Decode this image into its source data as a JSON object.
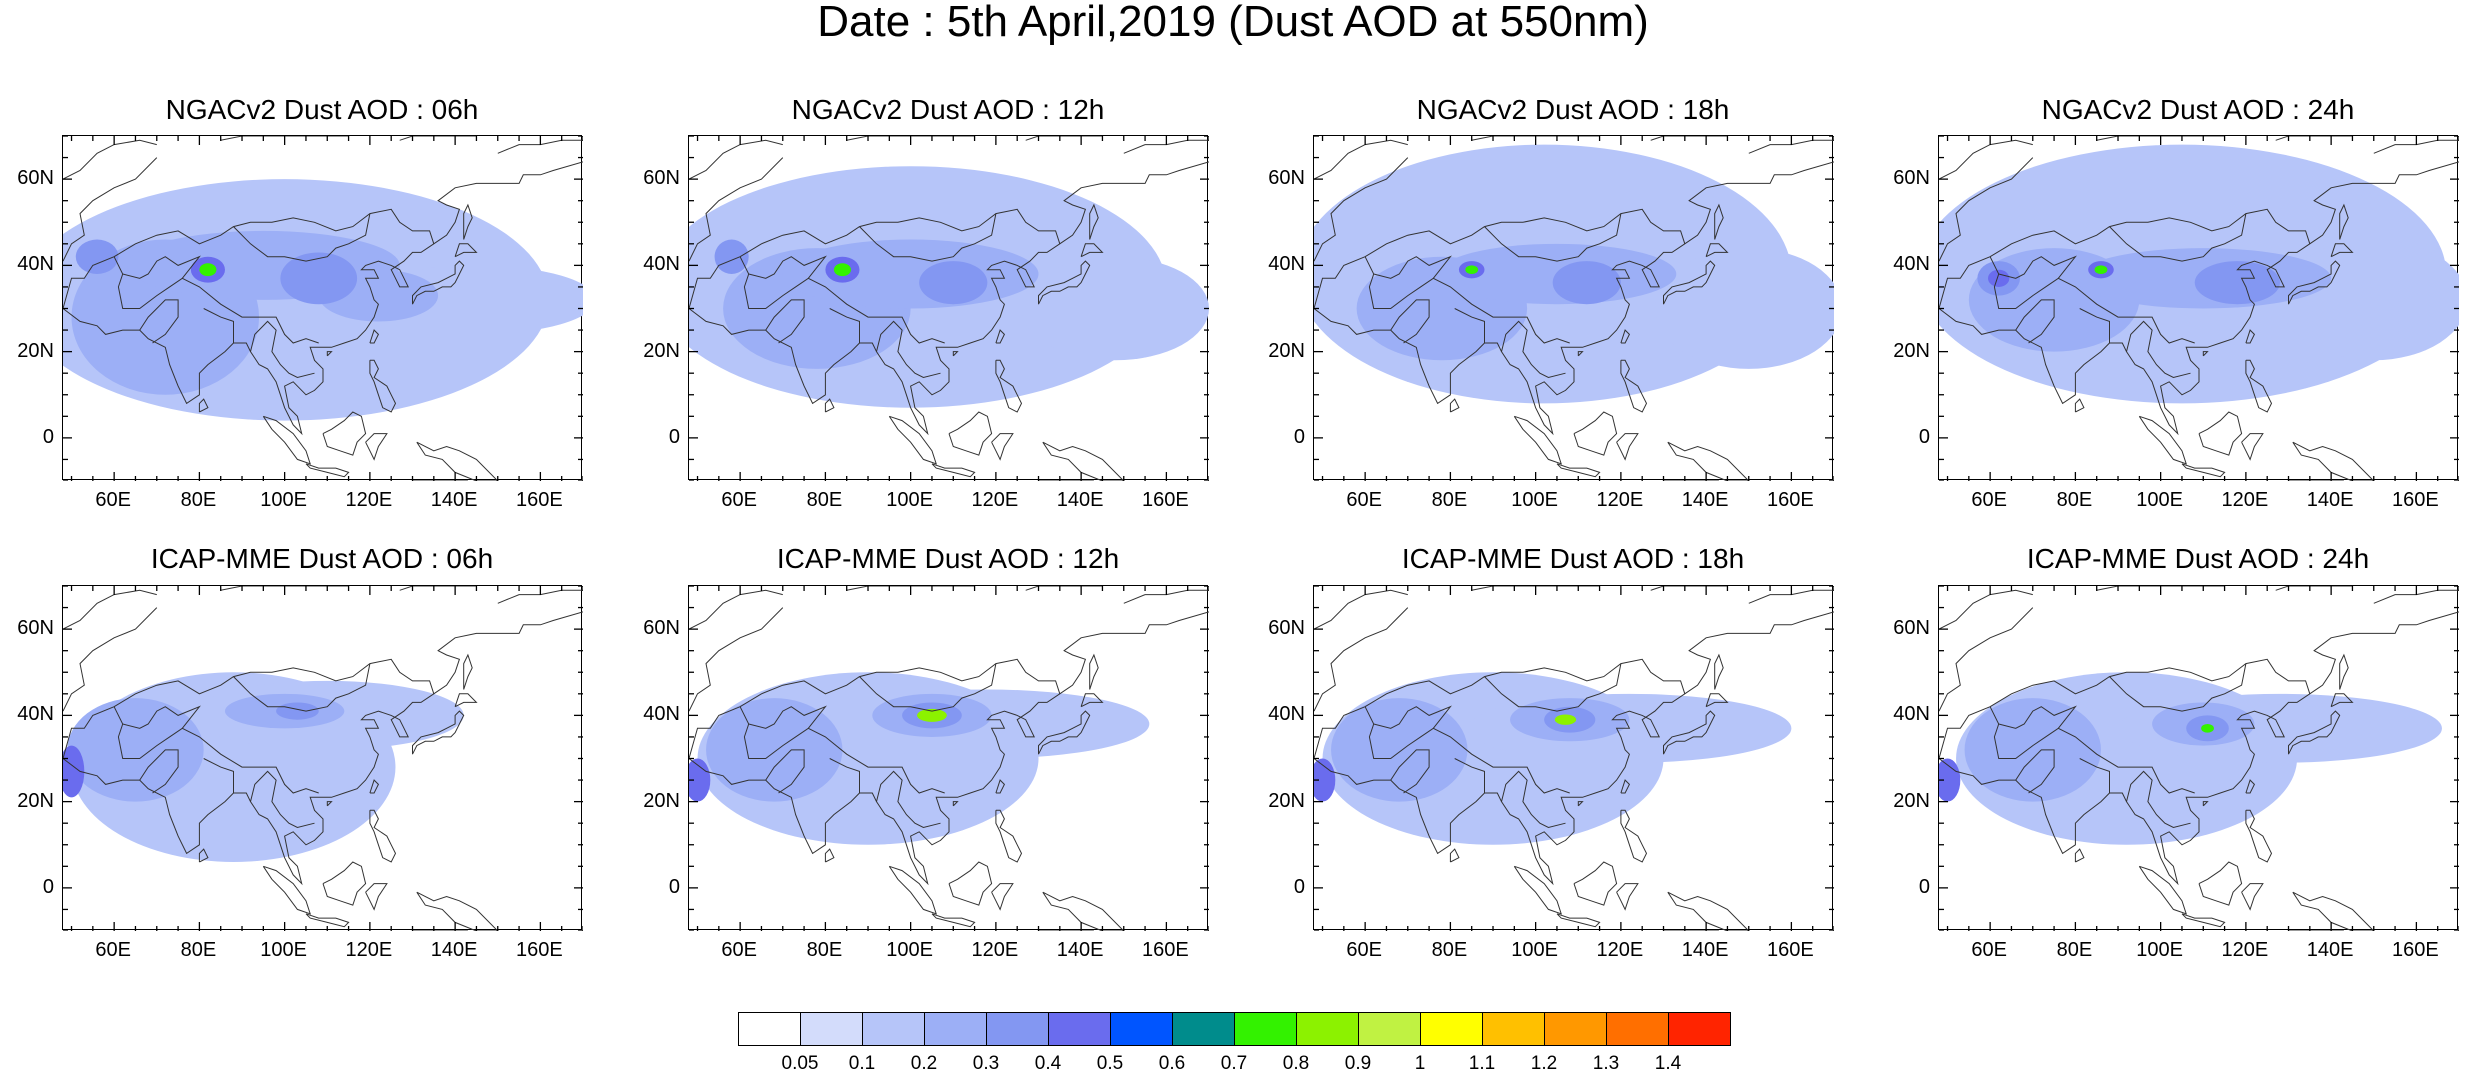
{
  "figure": {
    "title": "Date : 5th April,2019 (Dust AOD at 550nm)"
  },
  "axes": {
    "x_ticks": [
      "60E",
      "80E",
      "100E",
      "120E",
      "140E",
      "160E"
    ],
    "x_tick_values": [
      60,
      80,
      100,
      120,
      140,
      160
    ],
    "y_ticks": [
      "60N",
      "40N",
      "20N",
      "0"
    ],
    "y_tick_values": [
      60,
      40,
      20,
      0
    ],
    "lon_range": [
      48,
      170
    ],
    "lat_range": [
      -10,
      70
    ]
  },
  "panels": [
    {
      "title": "NGACv2 Dust AOD : 06h",
      "model": "NGACv2",
      "forecast_hour": "06h",
      "features": [
        {
          "level": 0.1,
          "shape": "ellipse",
          "lon": 100,
          "lat": 32,
          "rlon": 62,
          "rlat": 28
        },
        {
          "level": 0.1,
          "shape": "ellipse",
          "lon": 145,
          "lat": 32,
          "rlon": 28,
          "rlat": 8
        },
        {
          "level": 0.2,
          "shape": "ellipse",
          "lon": 72,
          "lat": 28,
          "rlon": 22,
          "rlat": 18
        },
        {
          "level": 0.2,
          "shape": "ellipse",
          "lon": 95,
          "lat": 40,
          "rlon": 32,
          "rlat": 8
        },
        {
          "level": 0.2,
          "shape": "ellipse",
          "lon": 122,
          "lat": 33,
          "rlon": 14,
          "rlat": 6
        },
        {
          "level": 0.3,
          "shape": "ellipse",
          "lon": 108,
          "lat": 37,
          "rlon": 9,
          "rlat": 6
        },
        {
          "level": 0.3,
          "shape": "ellipse",
          "lon": 56,
          "lat": 42,
          "rlon": 5,
          "rlat": 4
        },
        {
          "level": 0.4,
          "shape": "ellipse",
          "lon": 82,
          "lat": 39,
          "rlon": 4,
          "rlat": 3
        },
        {
          "level": 0.7,
          "shape": "ellipse",
          "lon": 82,
          "lat": 39,
          "rlon": 2,
          "rlat": 1.5
        }
      ]
    },
    {
      "title": "NGACv2 Dust AOD : 12h",
      "model": "NGACv2",
      "forecast_hour": "12h",
      "features": [
        {
          "level": 0.1,
          "shape": "ellipse",
          "lon": 100,
          "lat": 35,
          "rlon": 60,
          "rlat": 28
        },
        {
          "level": 0.1,
          "shape": "ellipse",
          "lon": 148,
          "lat": 30,
          "rlon": 22,
          "rlat": 12
        },
        {
          "level": 0.2,
          "shape": "ellipse",
          "lon": 78,
          "lat": 30,
          "rlon": 22,
          "rlat": 14
        },
        {
          "level": 0.2,
          "shape": "ellipse",
          "lon": 100,
          "lat": 38,
          "rlon": 30,
          "rlat": 8
        },
        {
          "level": 0.3,
          "shape": "ellipse",
          "lon": 110,
          "lat": 36,
          "rlon": 8,
          "rlat": 5
        },
        {
          "level": 0.3,
          "shape": "ellipse",
          "lon": 58,
          "lat": 42,
          "rlon": 4,
          "rlat": 4
        },
        {
          "level": 0.4,
          "shape": "ellipse",
          "lon": 84,
          "lat": 39,
          "rlon": 4,
          "rlat": 3
        },
        {
          "level": 0.7,
          "shape": "ellipse",
          "lon": 84,
          "lat": 39,
          "rlon": 2,
          "rlat": 1.5
        }
      ]
    },
    {
      "title": "NGACv2 Dust AOD : 18h",
      "model": "NGACv2",
      "forecast_hour": "18h",
      "features": [
        {
          "level": 0.1,
          "shape": "ellipse",
          "lon": 102,
          "lat": 38,
          "rlon": 58,
          "rlat": 30
        },
        {
          "level": 0.1,
          "shape": "ellipse",
          "lon": 150,
          "lat": 30,
          "rlon": 22,
          "rlat": 14
        },
        {
          "level": 0.2,
          "shape": "ellipse",
          "lon": 78,
          "lat": 30,
          "rlon": 20,
          "rlat": 12
        },
        {
          "level": 0.2,
          "shape": "ellipse",
          "lon": 105,
          "lat": 38,
          "rlon": 28,
          "rlat": 7
        },
        {
          "level": 0.3,
          "shape": "ellipse",
          "lon": 112,
          "lat": 36,
          "rlon": 8,
          "rlat": 5
        },
        {
          "level": 0.4,
          "shape": "ellipse",
          "lon": 85,
          "lat": 39,
          "rlon": 3,
          "rlat": 2
        },
        {
          "level": 0.7,
          "shape": "ellipse",
          "lon": 85,
          "lat": 39,
          "rlon": 1.5,
          "rlat": 1
        }
      ]
    },
    {
      "title": "NGACv2 Dust AOD : 24h",
      "model": "NGACv2",
      "forecast_hour": "24h",
      "features": [
        {
          "level": 0.1,
          "shape": "ellipse",
          "lon": 105,
          "lat": 38,
          "rlon": 62,
          "rlat": 30
        },
        {
          "level": 0.1,
          "shape": "ellipse",
          "lon": 150,
          "lat": 32,
          "rlon": 22,
          "rlat": 14
        },
        {
          "level": 0.2,
          "shape": "ellipse",
          "lon": 75,
          "lat": 32,
          "rlon": 20,
          "rlat": 12
        },
        {
          "level": 0.2,
          "shape": "ellipse",
          "lon": 110,
          "lat": 37,
          "rlon": 30,
          "rlat": 7
        },
        {
          "level": 0.3,
          "shape": "ellipse",
          "lon": 118,
          "lat": 36,
          "rlon": 10,
          "rlat": 5
        },
        {
          "level": 0.3,
          "shape": "ellipse",
          "lon": 62,
          "lat": 37,
          "rlon": 5,
          "rlat": 4
        },
        {
          "level": 0.4,
          "shape": "ellipse",
          "lon": 62,
          "lat": 37,
          "rlon": 2.5,
          "rlat": 2
        },
        {
          "level": 0.4,
          "shape": "ellipse",
          "lon": 86,
          "lat": 39,
          "rlon": 3,
          "rlat": 2
        },
        {
          "level": 0.7,
          "shape": "ellipse",
          "lon": 86,
          "lat": 39,
          "rlon": 1.5,
          "rlat": 1
        }
      ]
    },
    {
      "title": "ICAP-MME Dust AOD : 06h",
      "model": "ICAP-MME",
      "forecast_hour": "06h",
      "features": [
        {
          "level": 0.1,
          "shape": "ellipse",
          "lon": 88,
          "lat": 28,
          "rlon": 38,
          "rlat": 22
        },
        {
          "level": 0.1,
          "shape": "ellipse",
          "lon": 110,
          "lat": 40,
          "rlon": 32,
          "rlat": 8
        },
        {
          "level": 0.2,
          "shape": "ellipse",
          "lon": 65,
          "lat": 32,
          "rlon": 16,
          "rlat": 12
        },
        {
          "level": 0.2,
          "shape": "ellipse",
          "lon": 100,
          "lat": 41,
          "rlon": 14,
          "rlat": 4
        },
        {
          "level": 0.3,
          "shape": "ellipse",
          "lon": 103,
          "lat": 41,
          "rlon": 5,
          "rlat": 2
        },
        {
          "level": 0.4,
          "shape": "ellipse",
          "lon": 50,
          "lat": 27,
          "rlon": 3,
          "rlat": 6
        }
      ]
    },
    {
      "title": "ICAP-MME Dust AOD : 12h",
      "model": "ICAP-MME",
      "forecast_hour": "12h",
      "features": [
        {
          "level": 0.1,
          "shape": "ellipse",
          "lon": 90,
          "lat": 30,
          "rlon": 40,
          "rlat": 20
        },
        {
          "level": 0.1,
          "shape": "ellipse",
          "lon": 118,
          "lat": 38,
          "rlon": 38,
          "rlat": 8
        },
        {
          "level": 0.2,
          "shape": "ellipse",
          "lon": 68,
          "lat": 32,
          "rlon": 16,
          "rlat": 12
        },
        {
          "level": 0.2,
          "shape": "ellipse",
          "lon": 105,
          "lat": 40,
          "rlon": 14,
          "rlat": 5
        },
        {
          "level": 0.3,
          "shape": "ellipse",
          "lon": 105,
          "lat": 40,
          "rlon": 7,
          "rlat": 3
        },
        {
          "level": 0.4,
          "shape": "ellipse",
          "lon": 50,
          "lat": 25,
          "rlon": 3,
          "rlat": 5
        },
        {
          "level": 0.8,
          "shape": "ellipse",
          "lon": 105,
          "lat": 40,
          "rlon": 3.5,
          "rlat": 1.5
        }
      ]
    },
    {
      "title": "ICAP-MME Dust AOD : 18h",
      "model": "ICAP-MME",
      "forecast_hour": "18h",
      "features": [
        {
          "level": 0.1,
          "shape": "ellipse",
          "lon": 90,
          "lat": 30,
          "rlon": 40,
          "rlat": 20
        },
        {
          "level": 0.1,
          "shape": "ellipse",
          "lon": 122,
          "lat": 37,
          "rlon": 38,
          "rlat": 8
        },
        {
          "level": 0.2,
          "shape": "ellipse",
          "lon": 68,
          "lat": 32,
          "rlon": 16,
          "rlat": 12
        },
        {
          "level": 0.2,
          "shape": "ellipse",
          "lon": 108,
          "lat": 39,
          "rlon": 14,
          "rlat": 5
        },
        {
          "level": 0.3,
          "shape": "ellipse",
          "lon": 108,
          "lat": 39,
          "rlon": 6,
          "rlat": 3
        },
        {
          "level": 0.4,
          "shape": "ellipse",
          "lon": 50,
          "lat": 25,
          "rlon": 3,
          "rlat": 5
        },
        {
          "level": 0.8,
          "shape": "ellipse",
          "lon": 107,
          "lat": 39,
          "rlon": 2.5,
          "rlat": 1.2
        }
      ]
    },
    {
      "title": "ICAP-MME Dust AOD : 24h",
      "model": "ICAP-MME",
      "forecast_hour": "24h",
      "features": [
        {
          "level": 0.1,
          "shape": "ellipse",
          "lon": 92,
          "lat": 30,
          "rlon": 40,
          "rlat": 20
        },
        {
          "level": 0.1,
          "shape": "ellipse",
          "lon": 128,
          "lat": 37,
          "rlon": 38,
          "rlat": 8
        },
        {
          "level": 0.2,
          "shape": "ellipse",
          "lon": 70,
          "lat": 32,
          "rlon": 16,
          "rlat": 12
        },
        {
          "level": 0.2,
          "shape": "ellipse",
          "lon": 110,
          "lat": 38,
          "rlon": 12,
          "rlat": 5
        },
        {
          "level": 0.3,
          "shape": "ellipse",
          "lon": 111,
          "lat": 37,
          "rlon": 5,
          "rlat": 3
        },
        {
          "level": 0.4,
          "shape": "ellipse",
          "lon": 50,
          "lat": 25,
          "rlon": 3,
          "rlat": 5
        },
        {
          "level": 0.7,
          "shape": "ellipse",
          "lon": 111,
          "lat": 37,
          "rlon": 1.5,
          "rlat": 1
        }
      ]
    }
  ],
  "colorbar": {
    "labels": [
      "0.05",
      "0.1",
      "0.2",
      "0.3",
      "0.4",
      "0.5",
      "0.6",
      "0.7",
      "0.8",
      "0.9",
      "1",
      "1.1",
      "1.2",
      "1.3",
      "1.4"
    ],
    "colors": [
      "#ffffff",
      "#d3dcfb",
      "#b6c5f9",
      "#9caff6",
      "#8397f2",
      "#6a6cee",
      "#0055ff",
      "#008c8c",
      "#33f200",
      "#8cf200",
      "#c0f242",
      "#ffff00",
      "#ffc000",
      "#ff9800",
      "#ff6f00",
      "#ff2400"
    ],
    "level_values": [
      0,
      0.05,
      0.1,
      0.2,
      0.3,
      0.4,
      0.5,
      0.6,
      0.7,
      0.8,
      0.9,
      1,
      1.1,
      1.2,
      1.3,
      1.4
    ]
  }
}
